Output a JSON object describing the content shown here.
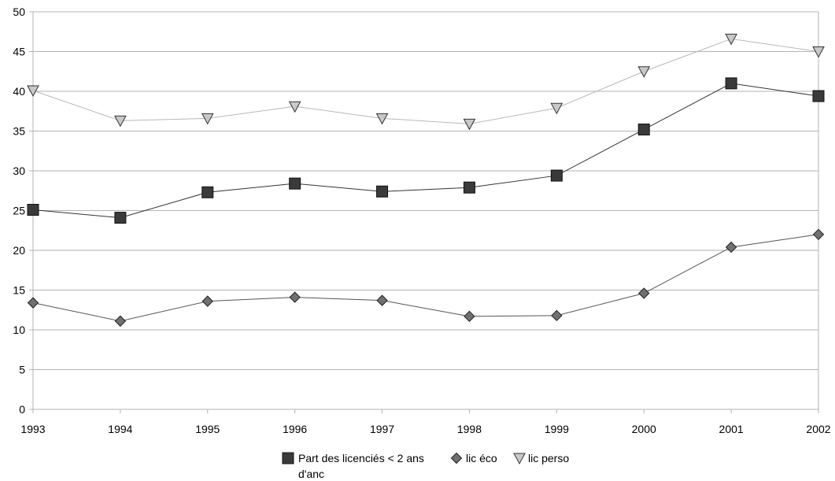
{
  "chart_data": {
    "type": "line",
    "title": "",
    "xlabel": "",
    "ylabel": "",
    "categories": [
      "1993",
      "1994",
      "1995",
      "1996",
      "1997",
      "1998",
      "1999",
      "2000",
      "2001",
      "2002"
    ],
    "ylim": [
      0,
      50
    ],
    "yticks": [
      0,
      5,
      10,
      15,
      20,
      25,
      30,
      35,
      40,
      45,
      50
    ],
    "grid": true,
    "legend_position": "bottom",
    "series": [
      {
        "name": "Part des licenciés < 2 ans d'anc",
        "marker": "square",
        "line_color": "#333333",
        "marker_fill": "#3a3a3a",
        "values": [
          25.1,
          24.1,
          27.3,
          28.4,
          27.4,
          27.9,
          29.4,
          35.2,
          41.0,
          39.4
        ]
      },
      {
        "name": "lic éco",
        "marker": "diamond",
        "line_color": "#555555",
        "marker_fill": "#707070",
        "values": [
          13.4,
          11.1,
          13.6,
          14.1,
          13.7,
          11.7,
          11.8,
          14.6,
          20.4,
          22.0
        ]
      },
      {
        "name": "lic perso",
        "marker": "triangle-down",
        "line_color": "#b8b8b8",
        "marker_fill": "#c8c8c8",
        "values": [
          40.1,
          36.3,
          36.6,
          38.1,
          36.6,
          35.9,
          37.9,
          42.5,
          46.6,
          45.0
        ]
      }
    ]
  }
}
